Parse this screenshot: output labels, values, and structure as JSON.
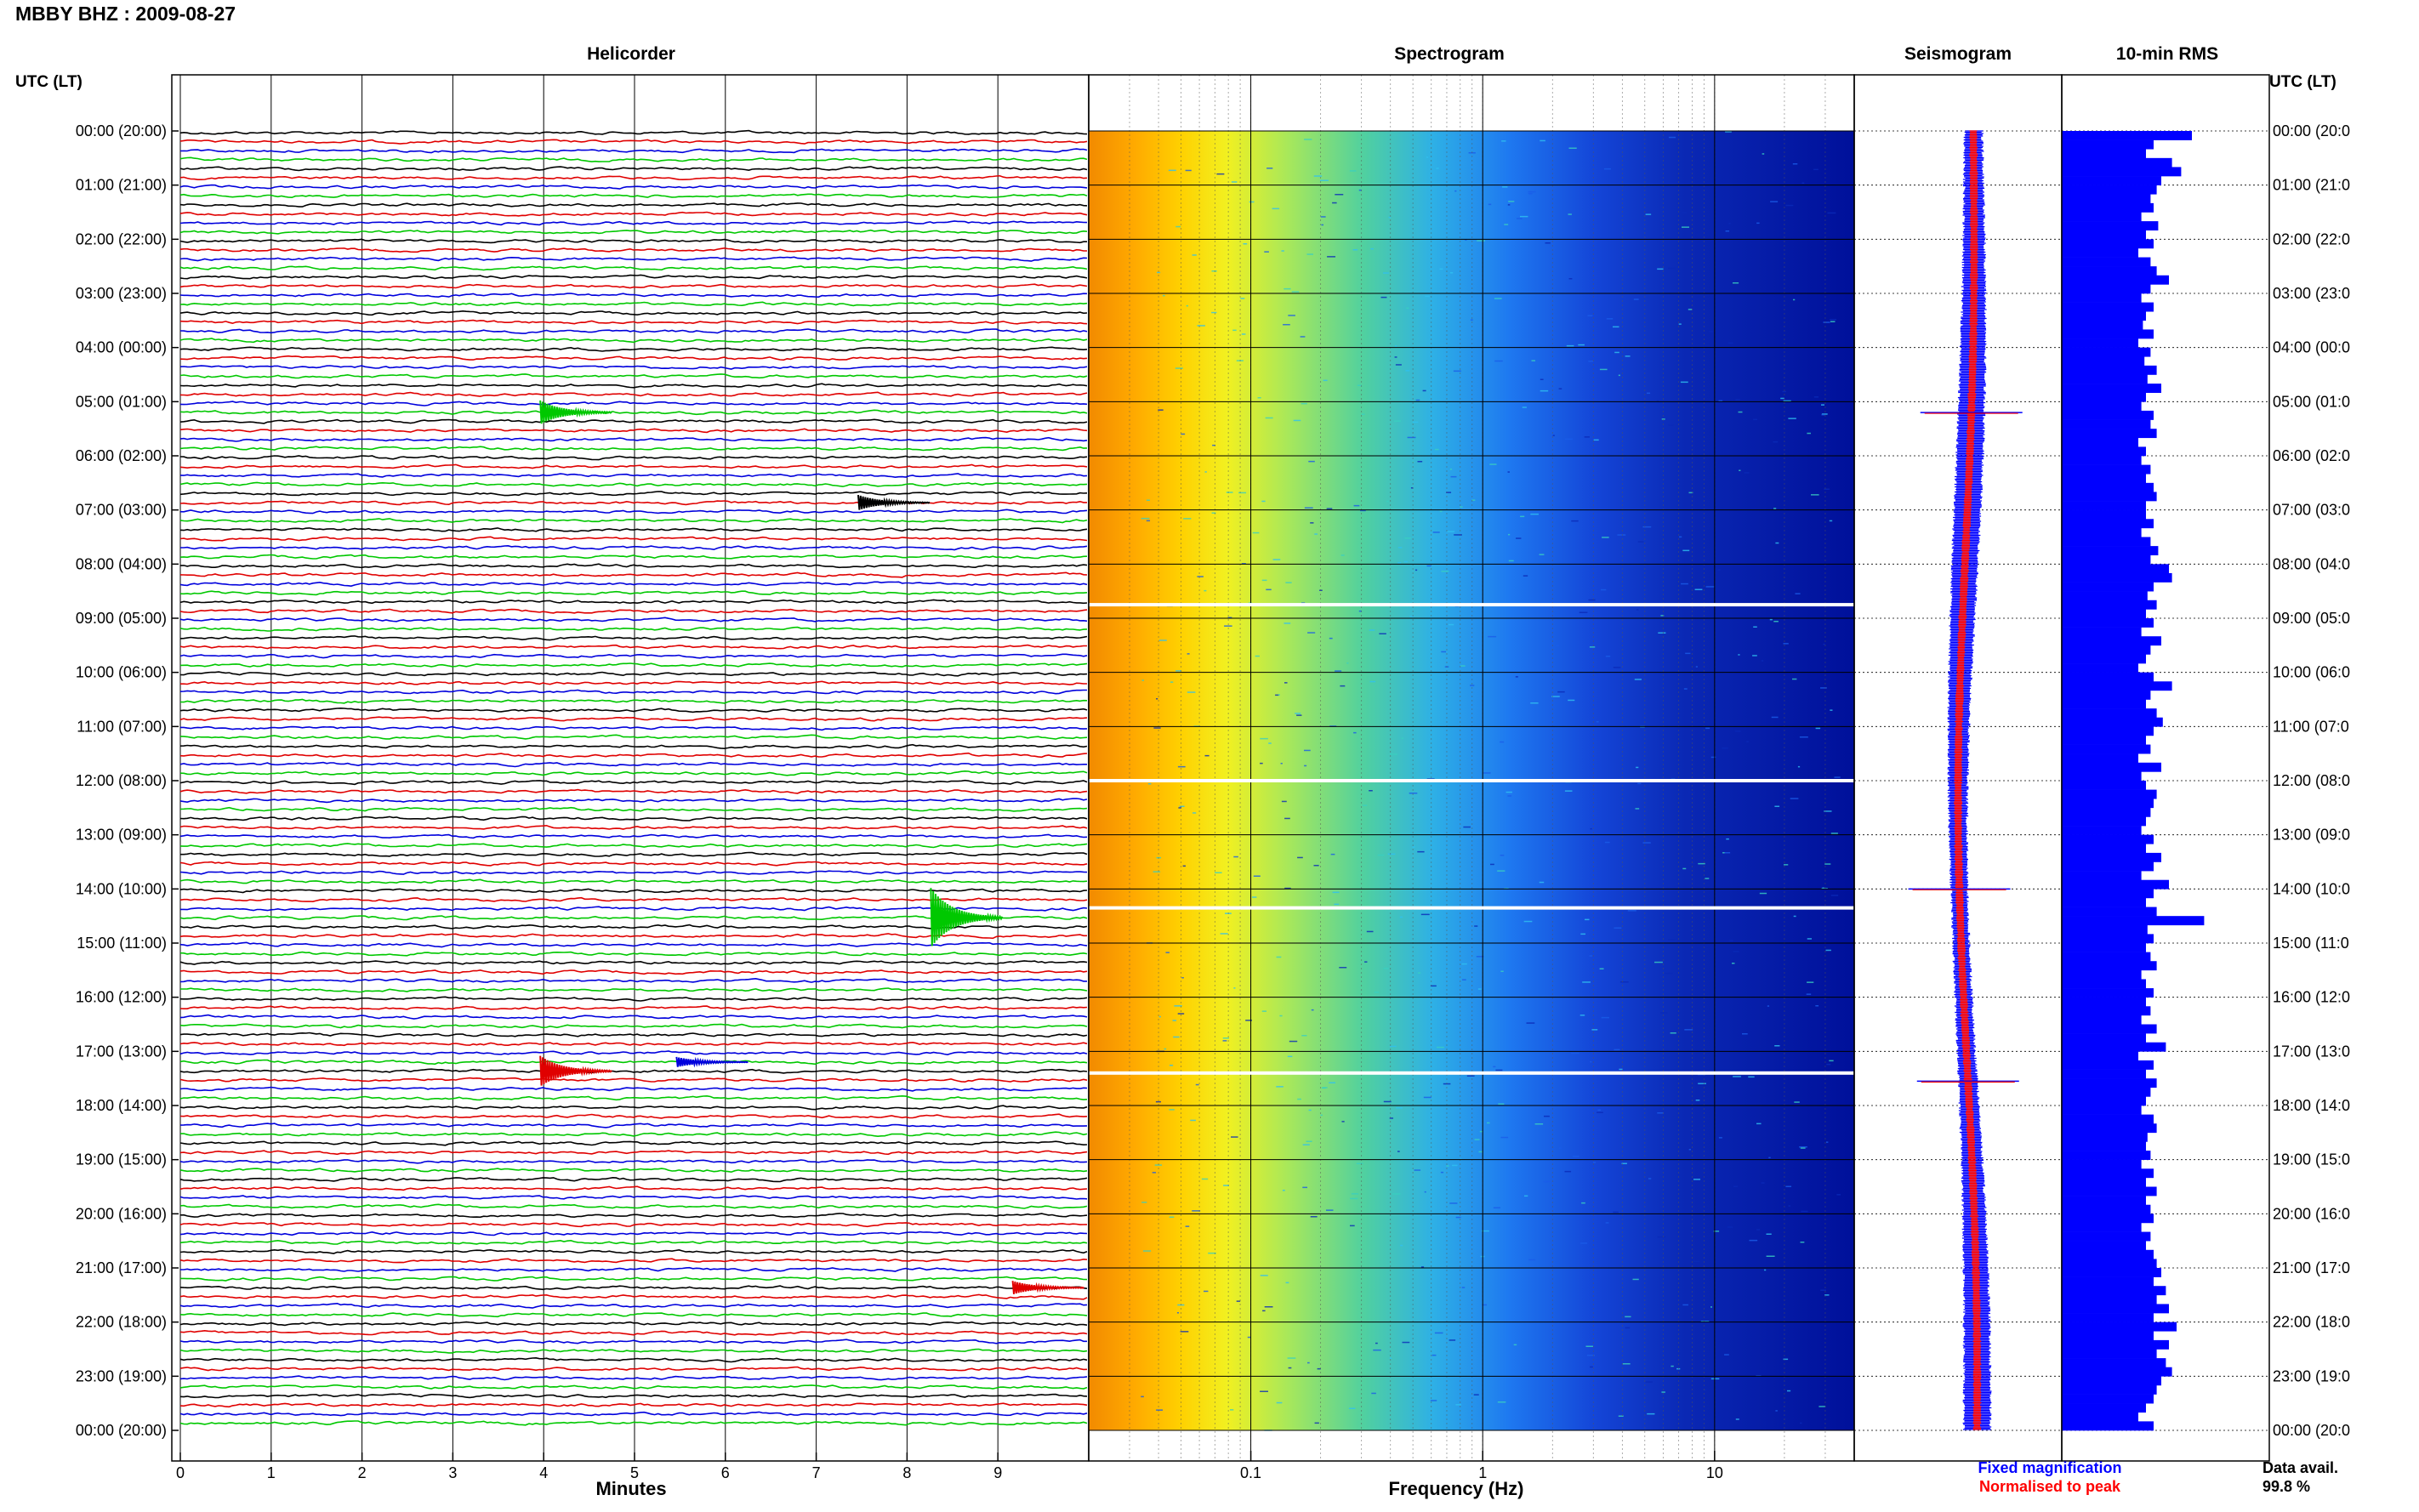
{
  "header": {
    "title": "MBBY BHZ : 2009-08-27",
    "utc_label": "UTC (LT)"
  },
  "panels": {
    "helicorder": "Helicorder",
    "spectrogram": "Spectrogram",
    "seismogram": "Seismogram",
    "rms": "10-min RMS"
  },
  "footer": {
    "minutes_label": "Minutes",
    "frequency_label": "Frequency (Hz)",
    "legend_fixed": "Fixed magnification",
    "legend_normalised": "Normalised to peak",
    "data_avail_label": "Data avail.",
    "data_avail_value": "99.8 %"
  },
  "colors": {
    "trace_cycle": [
      "#000000",
      "#e00000",
      "#0000dd",
      "#00c800"
    ],
    "fixed_magnification": "#0000ff",
    "normalised": "#ff0000",
    "rms_bar": "#0000ff"
  },
  "chart_data": [
    {
      "type": "line",
      "title": "Helicorder",
      "xlabel": "Minutes",
      "ylabel": "UTC (LT)",
      "x_ticks": [
        "0",
        "1",
        "2",
        "3",
        "4",
        "5",
        "6",
        "7",
        "8",
        "9"
      ],
      "xlim": [
        0,
        10
      ],
      "hour_labels": [
        "00:00 (20:00)",
        "01:00 (21:00)",
        "02:00 (22:00)",
        "03:00 (23:00)",
        "04:00 (00:00)",
        "05:00 (01:00)",
        "06:00 (02:00)",
        "07:00 (03:00)",
        "08:00 (04:00)",
        "09:00 (05:00)",
        "10:00 (06:00)",
        "11:00 (07:00)",
        "12:00 (08:00)",
        "13:00 (09:00)",
        "14:00 (10:00)",
        "15:00 (11:00)",
        "16:00 (12:00)",
        "17:00 (13:00)",
        "18:00 (14:00)",
        "19:00 (15:00)",
        "20:00 (16:00)",
        "21:00 (17:00)",
        "22:00 (18:00)",
        "23:00 (19:00)",
        "00:00 (20:00)"
      ],
      "right_hour_labels": [
        "00:00 (20:0",
        "01:00 (21:0",
        "02:00 (22:0",
        "03:00 (23:0",
        "04:00 (00:0",
        "05:00 (01:0",
        "06:00 (02:0",
        "07:00 (03:0",
        "08:00 (04:0",
        "09:00 (05:0",
        "10:00 (06:0",
        "11:00 (07:0",
        "12:00 (08:0",
        "13:00 (09:0",
        "14:00 (10:0",
        "15:00 (11:0",
        "16:00 (12:0",
        "17:00 (13:0",
        "18:00 (14:0",
        "19:00 (15:0",
        "20:00 (16:0",
        "21:00 (17:0",
        "22:00 (18:0",
        "23:00 (19:0",
        "00:00 (20:0"
      ],
      "traces_per_hour": 6,
      "events": [
        {
          "row": 31,
          "minute": 4.0,
          "amplitude": 1.4,
          "color": "#00c800"
        },
        {
          "row": 41,
          "minute": 7.5,
          "amplitude": 0.9,
          "color": "#000000"
        },
        {
          "row": 87,
          "minute": 8.3,
          "amplitude": 3.5,
          "color": "#00c800"
        },
        {
          "row": 104,
          "minute": 4.0,
          "amplitude": 1.8,
          "color": "#e00000"
        },
        {
          "row": 103,
          "minute": 5.5,
          "amplitude": 0.6,
          "color": "#0000dd"
        },
        {
          "row": 128,
          "minute": 9.2,
          "amplitude": 0.8,
          "color": "#e00000"
        }
      ]
    },
    {
      "type": "heatmap",
      "title": "Spectrogram",
      "xlabel": "Frequency (Hz)",
      "x_scale": "log",
      "xlim": [
        0.02,
        40
      ],
      "x_ticks": [
        "0.1",
        "1",
        "10"
      ],
      "data_gaps_hours": [
        8.75,
        12.0,
        14.35,
        17.4
      ]
    },
    {
      "type": "line",
      "title": "Seismogram",
      "series": [
        {
          "name": "Fixed magnification",
          "color": "#0000ff"
        },
        {
          "name": "Normalised to peak",
          "color": "#ff0000"
        }
      ],
      "spikes_hours": [
        5.2,
        14.0,
        17.55
      ]
    },
    {
      "type": "bar",
      "title": "10-min RMS",
      "orientation": "horizontal",
      "bins_per_hour": 6,
      "values": [
        0.85,
        0.6,
        0.55,
        0.72,
        0.78,
        0.65,
        0.62,
        0.58,
        0.6,
        0.52,
        0.63,
        0.55,
        0.6,
        0.5,
        0.58,
        0.62,
        0.7,
        0.58,
        0.52,
        0.6,
        0.55,
        0.53,
        0.6,
        0.5,
        0.58,
        0.54,
        0.62,
        0.56,
        0.65,
        0.55,
        0.52,
        0.6,
        0.58,
        0.62,
        0.5,
        0.55,
        0.52,
        0.58,
        0.55,
        0.6,
        0.62,
        0.55,
        0.55,
        0.6,
        0.52,
        0.58,
        0.63,
        0.58,
        0.7,
        0.72,
        0.6,
        0.56,
        0.62,
        0.55,
        0.6,
        0.52,
        0.65,
        0.58,
        0.55,
        0.5,
        0.6,
        0.72,
        0.58,
        0.55,
        0.62,
        0.66,
        0.6,
        0.55,
        0.58,
        0.5,
        0.65,
        0.52,
        0.55,
        0.62,
        0.6,
        0.58,
        0.55,
        0.52,
        0.6,
        0.55,
        0.65,
        0.6,
        0.52,
        0.7,
        0.6,
        0.55,
        0.62,
        0.93,
        0.56,
        0.6,
        0.55,
        0.58,
        0.62,
        0.52,
        0.55,
        0.6,
        0.55,
        0.58,
        0.52,
        0.62,
        0.55,
        0.68,
        0.5,
        0.6,
        0.55,
        0.62,
        0.58,
        0.55,
        0.52,
        0.6,
        0.62,
        0.56,
        0.55,
        0.58,
        0.52,
        0.6,
        0.55,
        0.62,
        0.55,
        0.58,
        0.6,
        0.52,
        0.58,
        0.55,
        0.6,
        0.62,
        0.65,
        0.6,
        0.68,
        0.62,
        0.7,
        0.6,
        0.75,
        0.6,
        0.7,
        0.62,
        0.68,
        0.72,
        0.65,
        0.62,
        0.6,
        0.55,
        0.5,
        0.6
      ]
    }
  ]
}
